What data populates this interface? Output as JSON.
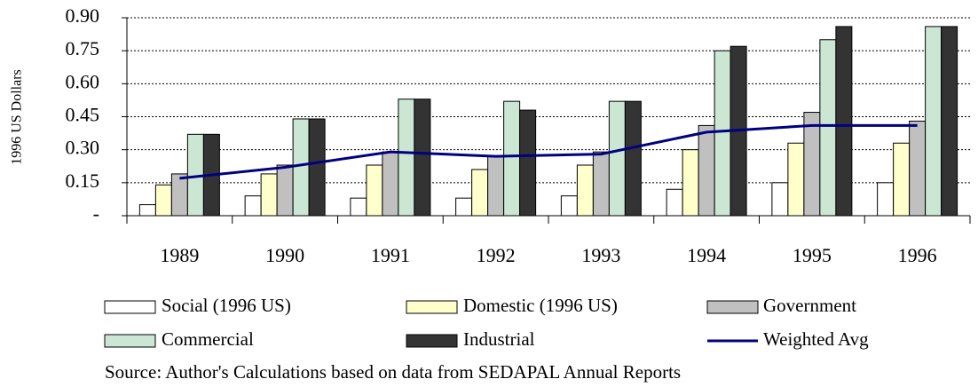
{
  "chart_data": {
    "type": "bar",
    "y_label": "1996 US Dollars",
    "source": "Source: Author's Calculations based on data from SEDAPAL Annual Reports",
    "categories": [
      "1989",
      "1990",
      "1991",
      "1992",
      "1993",
      "1994",
      "1995",
      "1996"
    ],
    "series": [
      {
        "name": "Social (1996 US)",
        "color": "#ffffff",
        "values": [
          0.05,
          0.09,
          0.08,
          0.08,
          0.09,
          0.12,
          0.15,
          0.15
        ]
      },
      {
        "name": "Domestic (1996 US)",
        "color": "#ffffcc",
        "values": [
          0.14,
          0.19,
          0.23,
          0.21,
          0.23,
          0.3,
          0.33,
          0.33
        ]
      },
      {
        "name": "Government",
        "color": "#c0c0c0",
        "values": [
          0.19,
          0.23,
          0.29,
          0.27,
          0.29,
          0.41,
          0.47,
          0.43
        ]
      },
      {
        "name": "Commercial",
        "color": "#cce6d4",
        "values": [
          0.37,
          0.44,
          0.53,
          0.52,
          0.52,
          0.75,
          0.8,
          0.86
        ]
      },
      {
        "name": "Industrial",
        "color": "#333333",
        "values": [
          0.37,
          0.44,
          0.53,
          0.48,
          0.52,
          0.77,
          0.86,
          0.86
        ]
      },
      {
        "name": "Weighted Avg",
        "color": "#000080",
        "type": "line",
        "values": [
          0.17,
          0.22,
          0.29,
          0.27,
          0.28,
          0.38,
          0.41,
          0.41
        ]
      }
    ],
    "ylim": [
      0,
      0.9
    ],
    "yticks": [
      {
        "value": 0,
        "label": "-"
      },
      {
        "value": 0.15,
        "label": "0.15"
      },
      {
        "value": 0.3,
        "label": "0.30"
      },
      {
        "value": 0.45,
        "label": "0.45"
      },
      {
        "value": 0.6,
        "label": "0.60"
      },
      {
        "value": 0.75,
        "label": "0.75"
      },
      {
        "value": 0.9,
        "label": "0.90"
      }
    ],
    "grid": true
  }
}
